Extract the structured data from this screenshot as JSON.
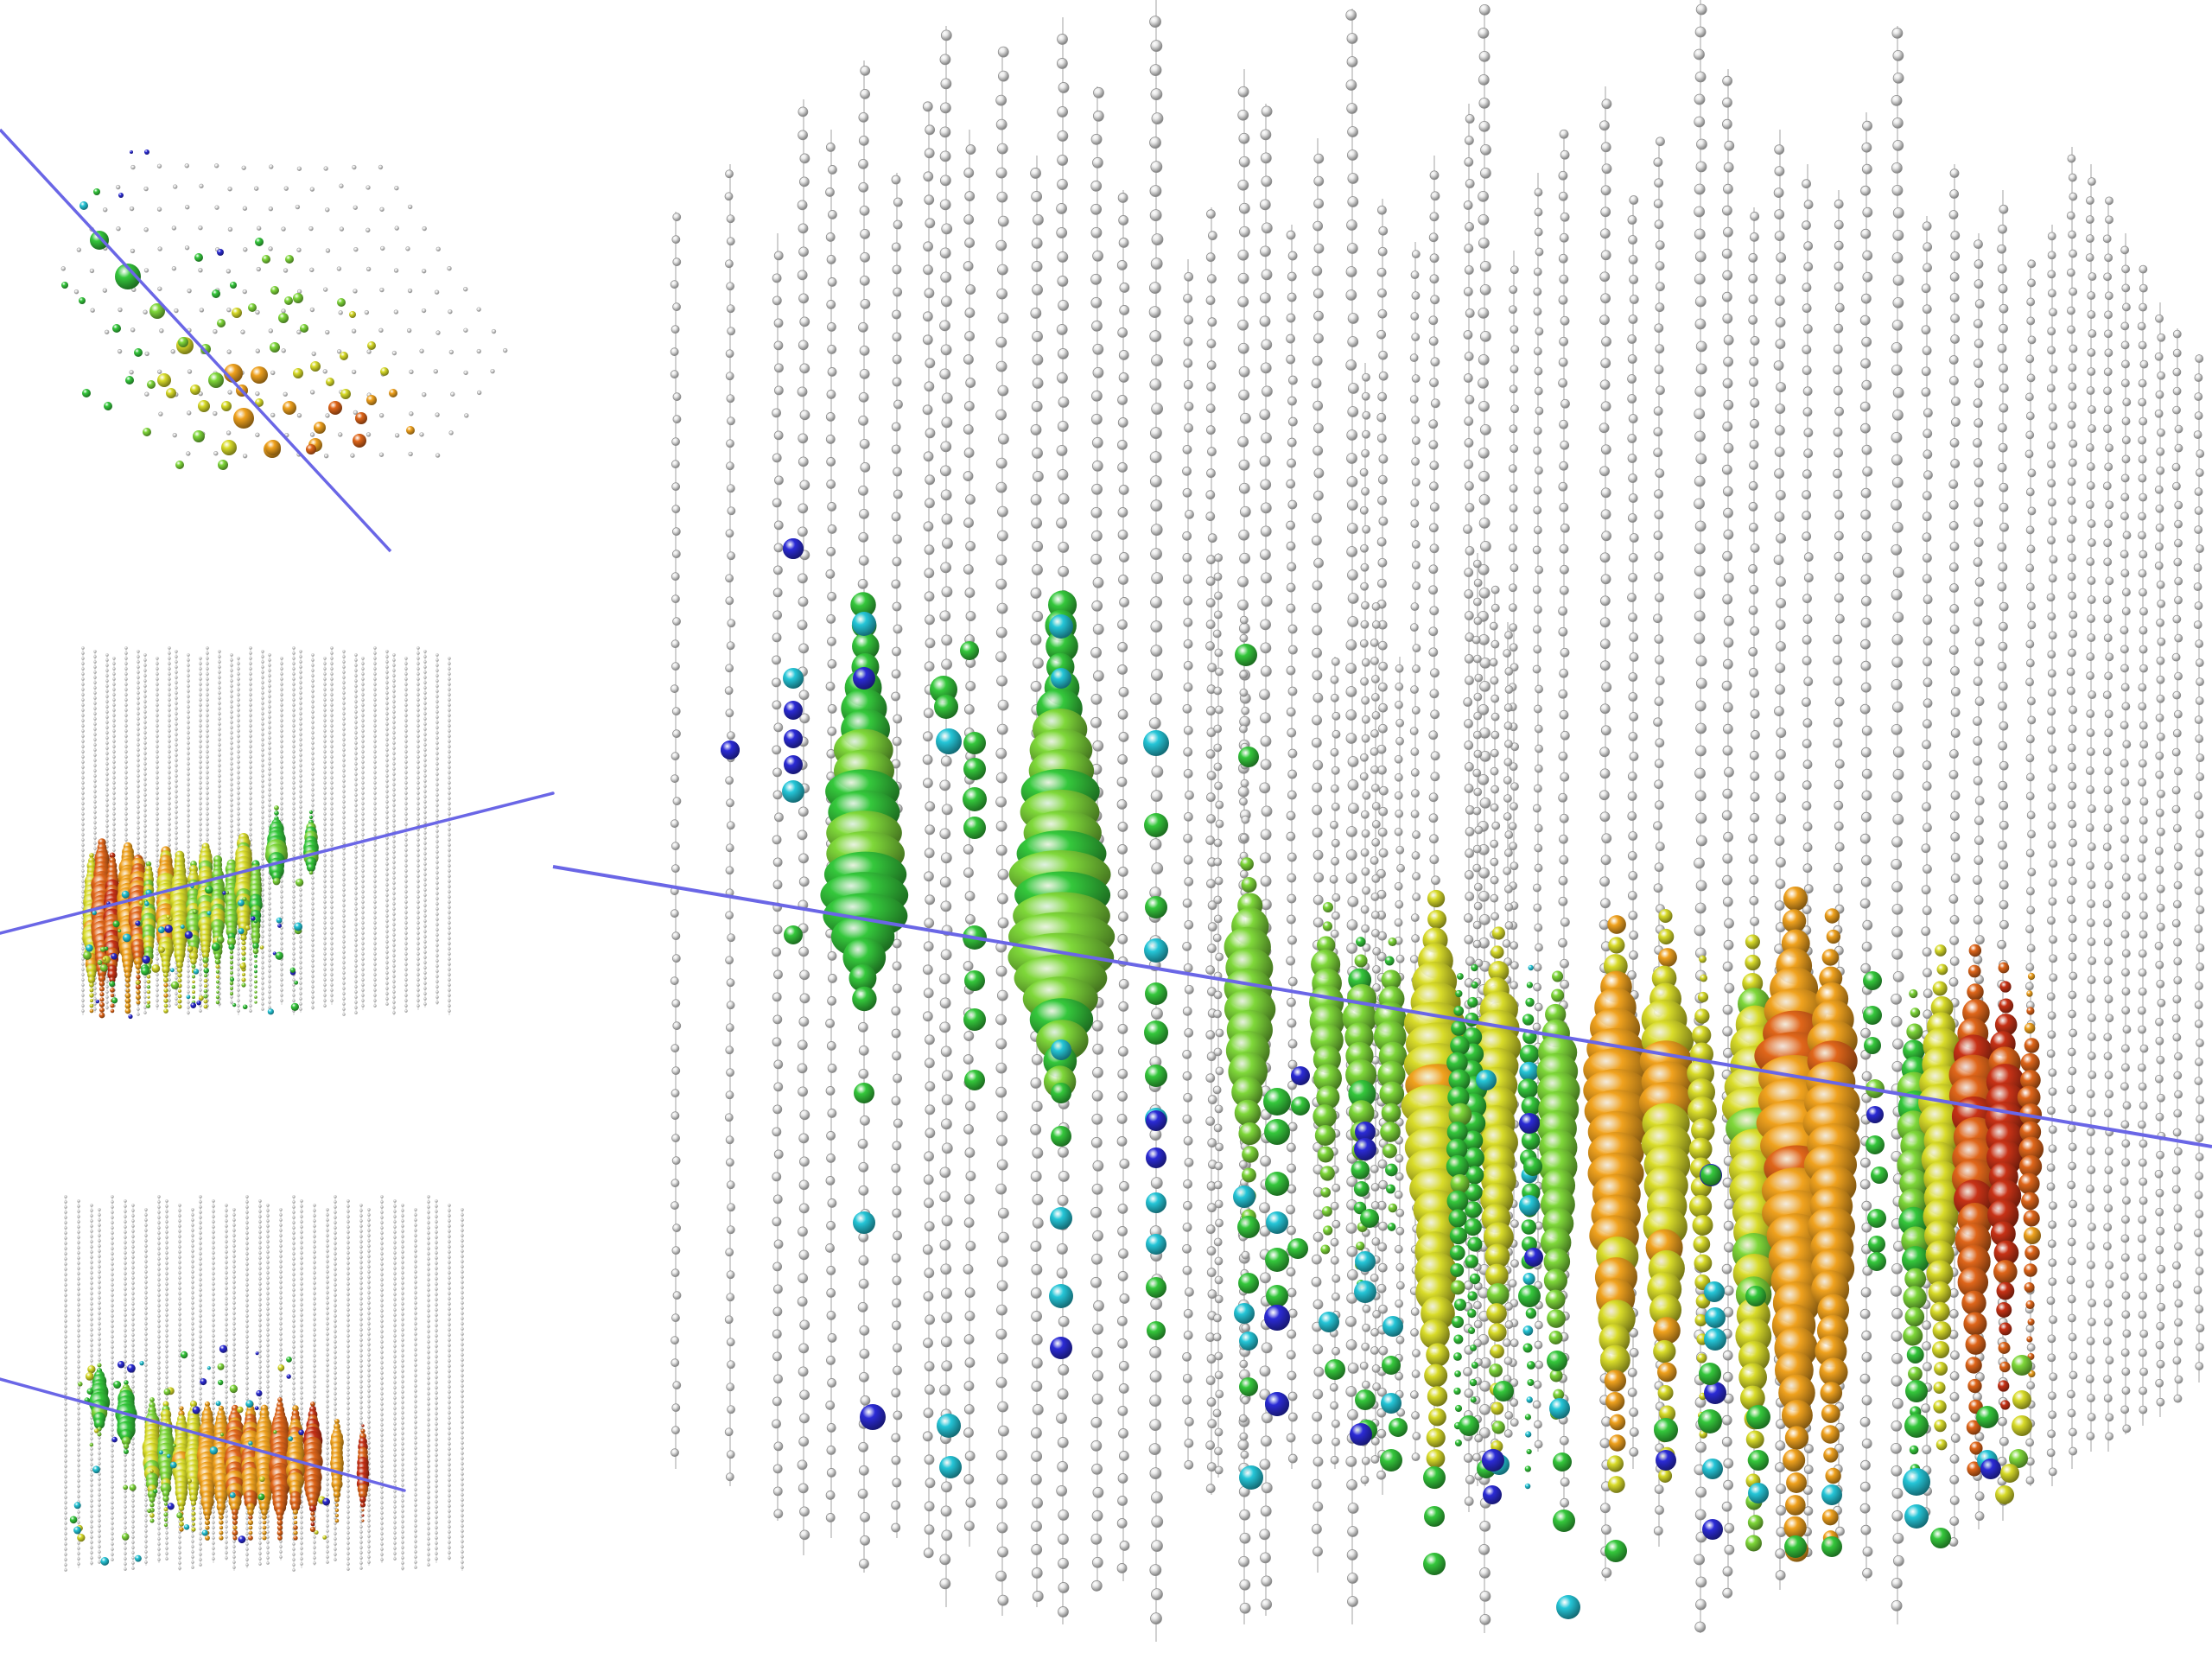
{
  "title": "",
  "panels": [
    {
      "key": "top",
      "view": "top-down"
    },
    {
      "key": "mid",
      "view": "side"
    },
    {
      "key": "bot",
      "view": "side"
    },
    {
      "key": "main",
      "view": "perspective"
    }
  ],
  "colors": {
    "track": "#6a66e6",
    "dom_idle": "#e8e8e8",
    "string": "#bdbdbd",
    "scale": [
      "#2b2bd6",
      "#25c6d8",
      "#35c83c",
      "#7fd83a",
      "#d9dc2a",
      "#f0a21e",
      "#e0661a",
      "#c83216"
    ]
  }
}
